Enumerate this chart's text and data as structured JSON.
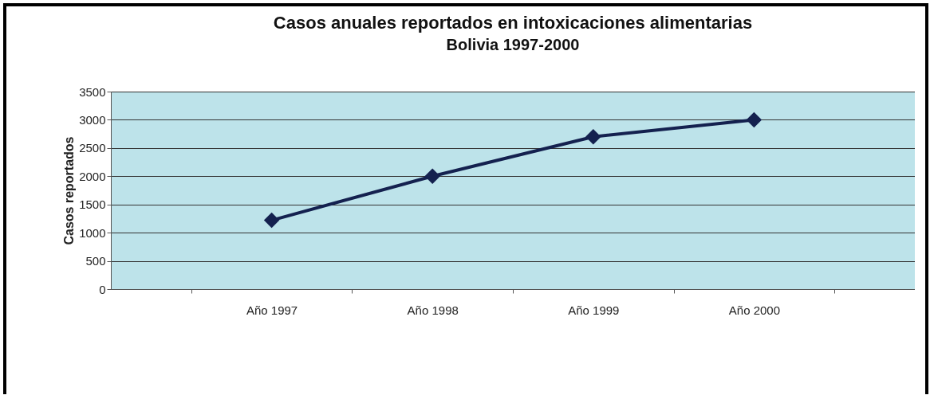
{
  "chart_data": {
    "type": "line",
    "title": "Casos anuales reportados en intoxicaciones alimentarias",
    "subtitle": "Bolivia 1997-2000",
    "ylabel": "Casos reportados",
    "categories": [
      "Año 1997",
      "Año 1998",
      "Año 1999",
      "Año 2000"
    ],
    "series": [
      {
        "color": "#14214f",
        "values": [
          1220,
          2000,
          2700,
          3000
        ]
      }
    ],
    "ylim": [
      0,
      3500
    ],
    "yticks": [
      0,
      500,
      1000,
      1500,
      2000,
      2500,
      3000,
      3500
    ],
    "grid": "y",
    "marker": "diamond",
    "line_style": "solid"
  }
}
